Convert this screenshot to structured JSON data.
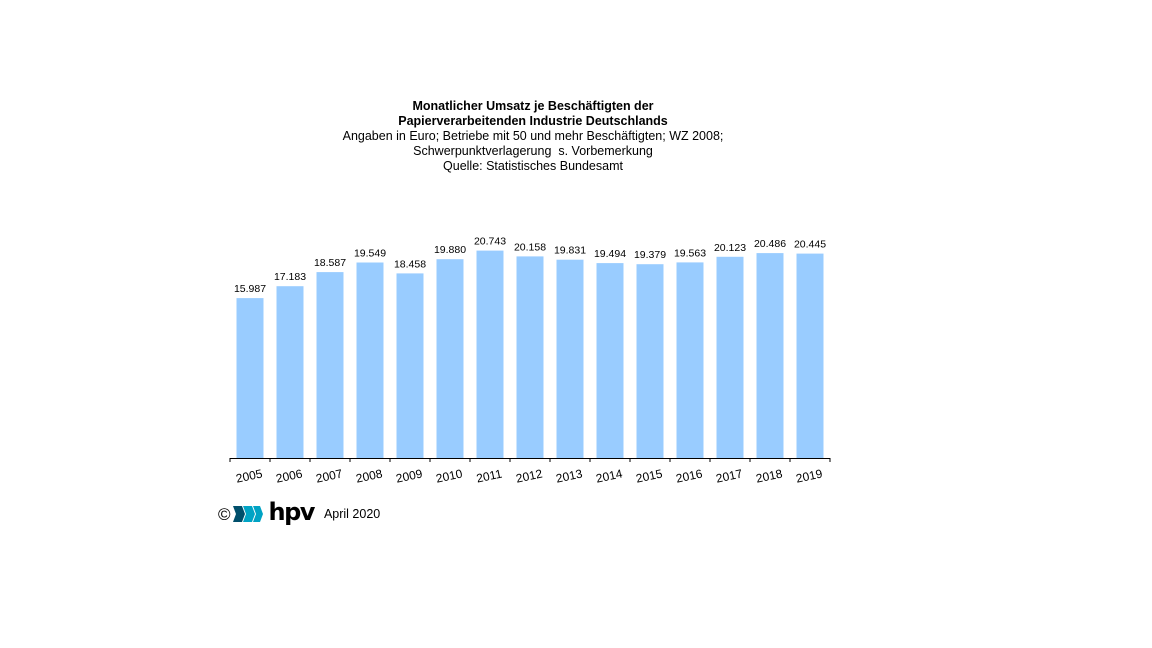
{
  "colors": {
    "bar": "#99ccff",
    "axis": "#000000",
    "logo_primary": "#00a3c4",
    "logo_dark": "#004f6b"
  },
  "footer": {
    "copyright": "©",
    "logo_text": "hpv",
    "logo_icon": "hpv-chevron-logo-icon",
    "date": "April 2020"
  },
  "chart_data": {
    "type": "bar",
    "title": "Monatlicher Umsatz je Beschäftigten der Papierverarbeitenden Industrie Deutschlands",
    "title_lines": [
      "Monatlicher Umsatz je Beschäftigten der",
      "Papierverarbeitenden Industrie Deutschlands"
    ],
    "subtitle_lines": [
      "Angaben in Euro; Betriebe mit 50 und mehr Beschäftigten; WZ 2008;",
      "Schwerpunktverlagerung  s. Vorbemerkung",
      "Quelle: Statistisches Bundesamt"
    ],
    "xlabel": "",
    "ylabel": "",
    "categories": [
      "2005",
      "2006",
      "2007",
      "2008",
      "2009",
      "2010",
      "2011",
      "2012",
      "2013",
      "2014",
      "2015",
      "2016",
      "2017",
      "2018",
      "2019"
    ],
    "values": [
      15987,
      17183,
      18587,
      19549,
      18458,
      19880,
      20743,
      20158,
      19831,
      19494,
      19379,
      19563,
      20123,
      20486,
      20445
    ],
    "data_labels": [
      "15.987",
      "17.183",
      "18.587",
      "19.549",
      "18.458",
      "19.880",
      "20.743",
      "20.158",
      "19.831",
      "19.494",
      "19.379",
      "19.563",
      "20.123",
      "20.486",
      "20.445"
    ],
    "ylim": [
      0,
      21600
    ],
    "grid": false,
    "legend": "none",
    "x_tick_rotation": "slanted"
  }
}
